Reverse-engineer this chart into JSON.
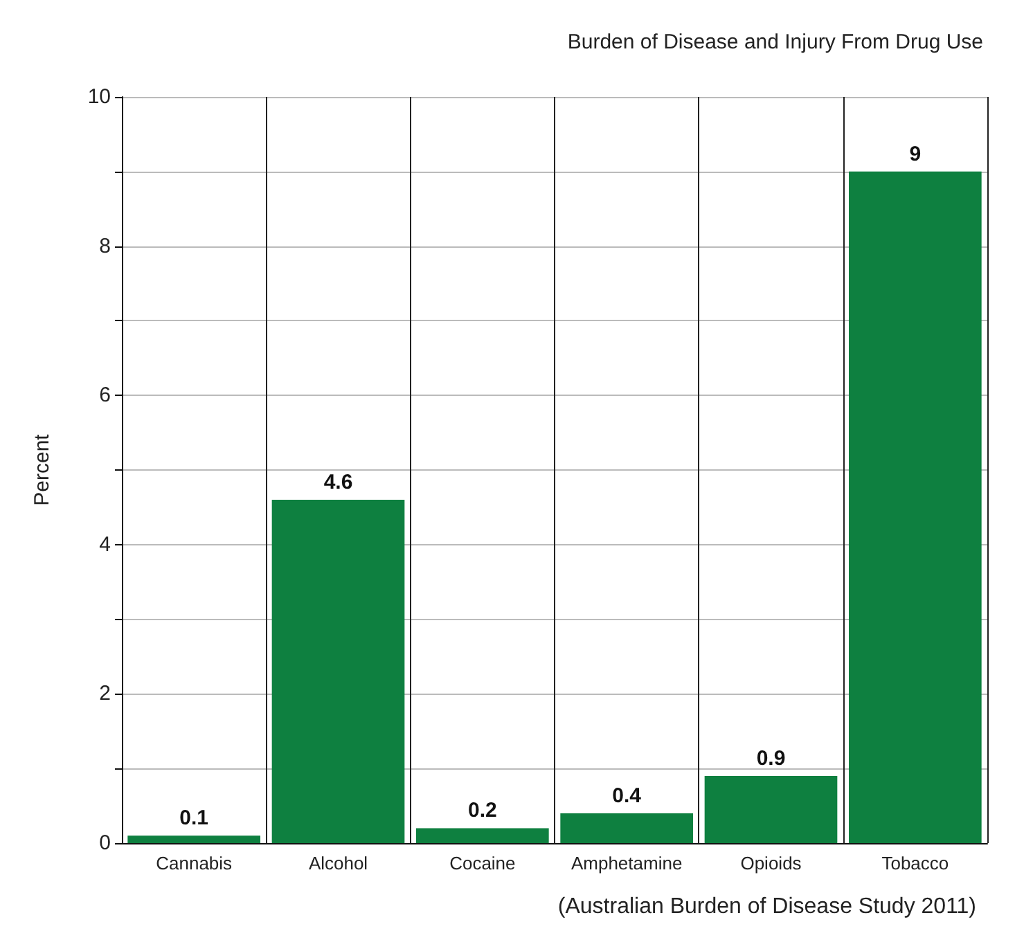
{
  "chart_data": {
    "type": "bar",
    "title": "Burden of Disease and Injury From Drug Use",
    "ylabel": "Percent",
    "categories": [
      "Cannabis",
      "Alcohol",
      "Cocaine",
      "Amphetamine",
      "Opioids",
      "Tobacco"
    ],
    "values": [
      0.1,
      4.6,
      0.2,
      0.4,
      0.9,
      9
    ],
    "color": "#0e8040",
    "data_labels": true,
    "ylim": [
      0,
      10
    ],
    "yticks": [
      0,
      {
        "value": 1,
        "label": null
      },
      2,
      {
        "value": 3,
        "label": null
      },
      4,
      {
        "value": 5,
        "label": null
      },
      6,
      {
        "value": 7,
        "label": null
      },
      8,
      {
        "value": 9,
        "label": null
      },
      10
    ],
    "grid": true,
    "annotations": [
      "(Australian Burden of Disease Study 2011)"
    ]
  }
}
